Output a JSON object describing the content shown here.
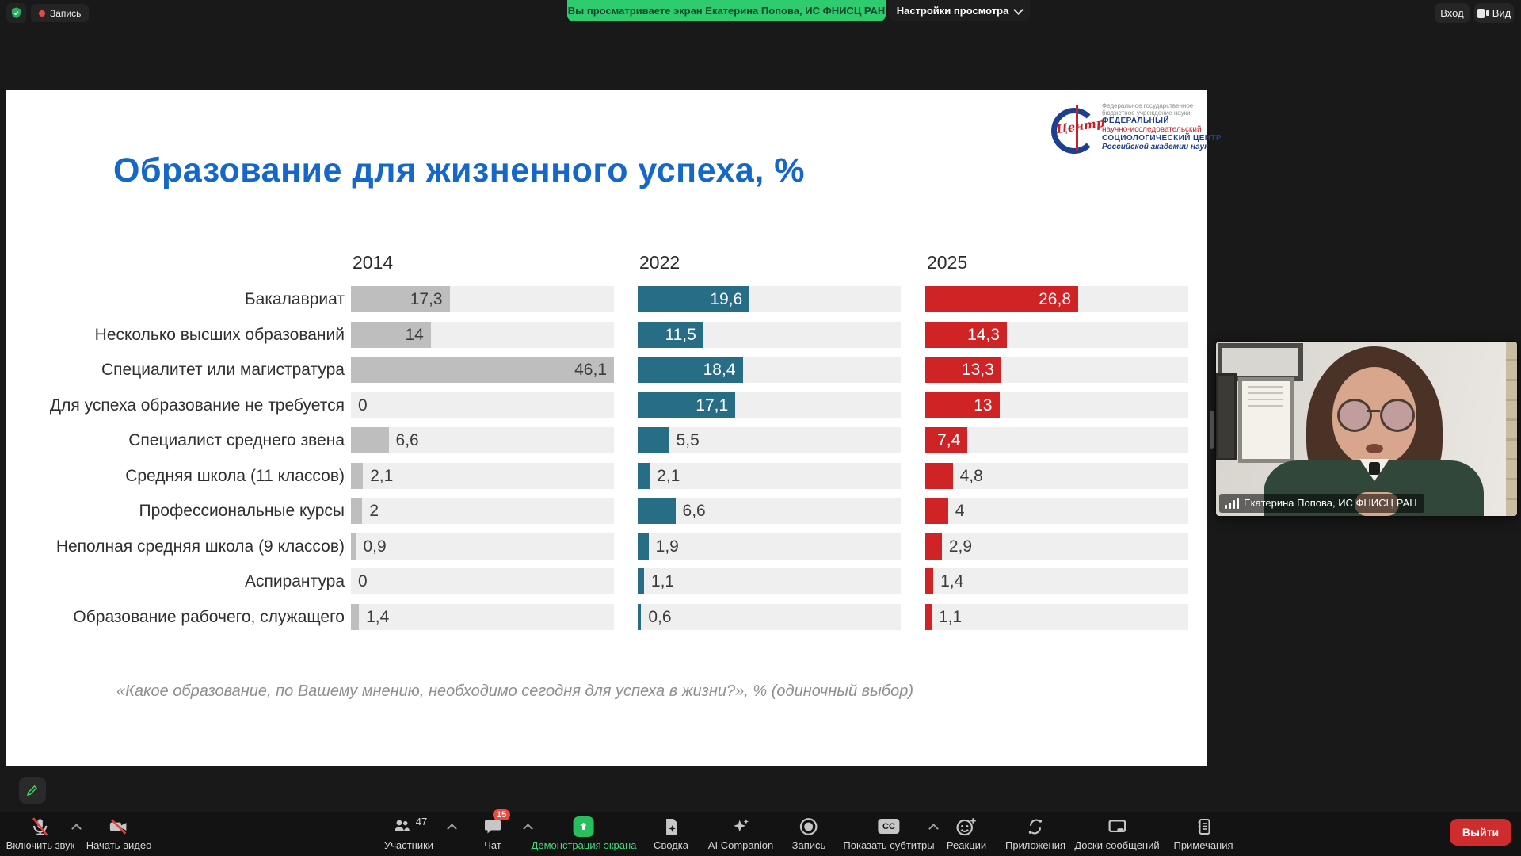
{
  "topbar": {
    "recording_label": "Запись",
    "banner_text": "Вы просматриваете экран Екатерина Попова, ИС ФНИСЦ РАН",
    "view_settings_label": "Настройки просмотра",
    "signin_label": "Вход",
    "view_label": "Вид"
  },
  "slide": {
    "title": "Образование для жизненного успеха, %",
    "caption": "«Какое образование, по Вашему мнению, необходимо сегодня для успеха в жизни?», % (одиночный выбор)",
    "logo": {
      "mark_word": "Центр",
      "line1": "Федеральное государственное",
      "line2": "бюджетное учреждение науки",
      "line3": "ФЕДЕРАЛЬНЫЙ",
      "line4": "научно-исследовательский",
      "line5": "СОЦИОЛОГИЧЕСКИЙ ЦЕНТР",
      "line6": "Российской академии наук"
    }
  },
  "chart_data": {
    "type": "bar",
    "orientation": "horizontal",
    "title": "Образование для жизненного успеха, %",
    "note": "«Какое образование, по Вашему мнению, необходимо сегодня для успеха в жизни?», % (одиночный выбор)",
    "categories": [
      "Бакалавриат",
      "Несколько высших образований",
      "Специалитет или магистратура",
      "Для успеха образование не требуется",
      "Специалист среднего звена",
      "Средняя школа (11 классов)",
      "Профессиональные курсы",
      "Неполная средняя школа (9 классов)",
      "Аспирантура",
      "Образование рабочего, служащего"
    ],
    "series": [
      {
        "name": "2014",
        "color": "#bfbebe",
        "values": [
          17.3,
          14,
          46.1,
          0,
          6.6,
          2.1,
          2,
          0.9,
          0,
          1.4
        ]
      },
      {
        "name": "2022",
        "color": "#276d86",
        "values": [
          19.6,
          11.5,
          18.4,
          17.1,
          5.5,
          2.1,
          6.6,
          1.9,
          1.1,
          0.6
        ]
      },
      {
        "name": "2025",
        "color": "#cf2326",
        "values": [
          26.8,
          14.3,
          13.3,
          13,
          7.4,
          4.8,
          4,
          2.9,
          1.4,
          1.1
        ]
      }
    ],
    "xlim": [
      0,
      46.1
    ],
    "grid": false,
    "legend_position": "column-headers",
    "decimal_separator": ","
  },
  "video_tile": {
    "name_label": "Екатерина Попова, ИС ФНИСЦ РАН"
  },
  "toolbar": {
    "mute_label": "Включить звук",
    "video_label": "Начать видео",
    "participants_label": "Участники",
    "participants_count": "47",
    "chat_label": "Чат",
    "chat_badge": "15",
    "share_label": "Демонстрация экрана",
    "summary_label": "Сводка",
    "ai_label": "AI Companion",
    "record_label": "Запись",
    "captions_label": "Показать субтитры",
    "reactions_label": "Реакции",
    "apps_label": "Приложения",
    "boards_label": "Доски сообщений",
    "notes_label": "Примечания",
    "leave_label": "Выйти"
  },
  "colors": {
    "title_blue": "#1568c8",
    "banner_green": "#2ecc6e",
    "share_green": "#2abd5e",
    "leave_red": "#cf2d2d",
    "series_2014": "#bfbebe",
    "series_2022": "#276d86",
    "series_2025": "#cf2326"
  }
}
